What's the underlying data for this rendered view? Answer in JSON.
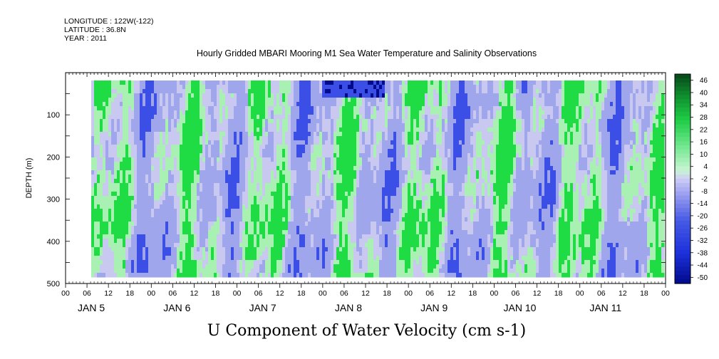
{
  "header": {
    "longitude": "LONGITUDE : 122W(-122)",
    "latitude": "LATITUDE : 36.8N",
    "year": "YEAR : 2011"
  },
  "chart_data": {
    "type": "heatmap",
    "title": "Hourly Gridded MBARI Mooring M1 Sea Water Temperature and Salinity Observations",
    "xlabel": "U Component of Water Velocity (cm s-1)",
    "ylabel": "DEPTH (m)",
    "ylim": [
      500,
      0
    ],
    "y_ticks": [
      100,
      200,
      300,
      400,
      500
    ],
    "hour_ticks": [
      "00",
      "06",
      "12",
      "18",
      "00",
      "06",
      "12",
      "18",
      "00",
      "06",
      "12",
      "18",
      "00",
      "06",
      "12",
      "18",
      "00",
      "06",
      "12",
      "18",
      "00",
      "06",
      "12",
      "18",
      "00",
      "06",
      "12",
      "18",
      "00"
    ],
    "day_labels": [
      "JAN  5",
      "JAN  6",
      "JAN  7",
      "JAN  8",
      "JAN  9",
      "JAN 10",
      "JAN 11"
    ],
    "colorbar": {
      "labels": [
        "46",
        "40",
        "34",
        "28",
        "22",
        "16",
        "10",
        "4",
        "-2",
        "-8",
        "-14",
        "-20",
        "-26",
        "-32",
        "-38",
        "-44",
        "-50"
      ],
      "max": 50,
      "min": -50
    },
    "colors": {
      "strong_positive": "#0b4d1a",
      "positive": "#1fdc45",
      "weak_positive": "#a9f0b3",
      "neutral": "#c8c8f0",
      "weak_negative": "#a0a6ec",
      "negative": "#3b4ee6",
      "strong_negative": "#000a8c"
    }
  }
}
